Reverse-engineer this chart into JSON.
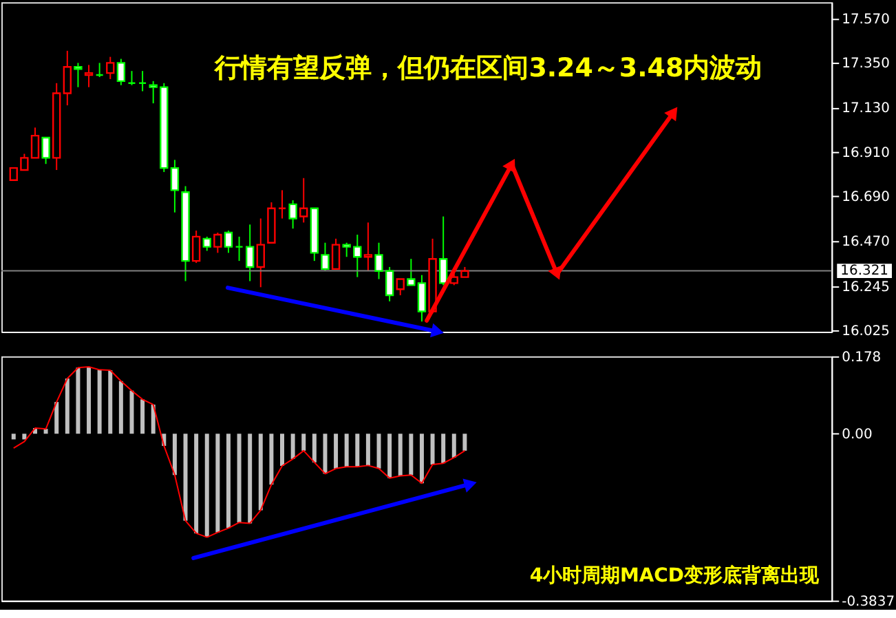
{
  "chart_data": [
    {
      "type": "candlestick",
      "categories": [
        null,
        null,
        null,
        null,
        null,
        null,
        null,
        null,
        null,
        null,
        null,
        null,
        null,
        null,
        null,
        null,
        null,
        null,
        null,
        null,
        null,
        null,
        null,
        null,
        null,
        null,
        null,
        null,
        null,
        null,
        null,
        null,
        null,
        null,
        null,
        null,
        null,
        null,
        null,
        null,
        null,
        null,
        null,
        null,
        null,
        null,
        null,
        null,
        null,
        null,
        null,
        null,
        null,
        null,
        null,
        null,
        null,
        null,
        null,
        null,
        null,
        null,
        null,
        null,
        null,
        null,
        null,
        null,
        null,
        null,
        null,
        null,
        null,
        null,
        null,
        null
      ],
      "ohlc": [
        [
          16.77,
          16.83,
          16.77,
          16.83
        ],
        [
          16.82,
          16.9,
          16.82,
          16.88
        ],
        [
          16.88,
          17.03,
          16.88,
          16.99
        ],
        [
          16.98,
          16.98,
          16.85,
          16.88
        ],
        [
          16.88,
          17.25,
          16.82,
          17.2
        ],
        [
          17.2,
          17.41,
          17.14,
          17.33
        ],
        [
          17.33,
          17.35,
          17.23,
          17.32
        ],
        [
          17.29,
          17.34,
          17.23,
          17.3
        ],
        [
          17.29,
          17.35,
          17.28,
          17.29
        ],
        [
          17.3,
          17.38,
          17.27,
          17.35
        ],
        [
          17.35,
          17.37,
          17.24,
          17.26
        ],
        [
          17.25,
          17.31,
          17.24,
          17.25
        ],
        [
          17.25,
          17.31,
          17.21,
          17.25
        ],
        [
          17.24,
          17.26,
          17.15,
          17.23
        ],
        [
          17.23,
          17.25,
          16.81,
          16.83
        ],
        [
          16.83,
          16.87,
          16.61,
          16.72
        ],
        [
          16.71,
          16.74,
          16.27,
          16.37
        ],
        [
          16.37,
          16.52,
          16.36,
          16.49
        ],
        [
          16.48,
          16.49,
          16.42,
          16.44
        ],
        [
          16.44,
          16.51,
          16.41,
          16.5
        ],
        [
          16.51,
          16.52,
          16.41,
          16.44
        ],
        [
          16.44,
          16.49,
          16.37,
          16.44
        ],
        [
          16.44,
          16.55,
          16.27,
          16.34
        ],
        [
          16.34,
          16.58,
          16.24,
          16.45
        ],
        [
          16.46,
          16.66,
          16.46,
          16.63
        ],
        [
          16.63,
          16.72,
          16.58,
          16.63
        ],
        [
          16.65,
          16.67,
          16.53,
          16.58
        ],
        [
          16.59,
          16.78,
          16.56,
          16.63
        ],
        [
          16.63,
          16.63,
          16.37,
          16.41
        ],
        [
          16.4,
          16.46,
          16.32,
          16.33
        ],
        [
          16.33,
          16.48,
          16.33,
          16.45
        ],
        [
          16.45,
          16.46,
          16.39,
          16.44
        ],
        [
          16.44,
          16.5,
          16.29,
          16.39
        ],
        [
          16.39,
          16.56,
          16.32,
          16.4
        ],
        [
          16.4,
          16.46,
          16.28,
          16.32
        ],
        [
          16.32,
          16.34,
          16.17,
          16.2
        ],
        [
          16.23,
          16.28,
          16.2,
          16.28
        ],
        [
          16.28,
          16.38,
          16.25,
          16.25
        ],
        [
          16.26,
          16.3,
          16.07,
          16.12
        ],
        [
          16.12,
          16.48,
          16.11,
          16.38
        ],
        [
          16.38,
          16.59,
          16.25,
          16.26
        ],
        [
          16.26,
          16.32,
          16.25,
          16.29
        ],
        [
          16.29,
          16.34,
          16.29,
          16.32
        ],
        null,
        null,
        null,
        null,
        null,
        null,
        null,
        null,
        null,
        null,
        null,
        null,
        null,
        null,
        null,
        null,
        null,
        null,
        null,
        null,
        null,
        null,
        null,
        null,
        null,
        null,
        null,
        null,
        null,
        null,
        null,
        null,
        null
      ],
      "colors": [
        "#ff0000",
        "#ff0000",
        "#ff0000",
        "#00ff00",
        "#ff0000",
        "#ff0000",
        "#00ff00",
        "#ff0000",
        "#00ff00",
        "#ff0000",
        "#00ff00",
        "#00ff00",
        "#00ff00",
        "#00ff00",
        "#00ff00",
        "#00ff00",
        "#00ff00",
        "#ff0000",
        "#00ff00",
        "#ff0000",
        "#00ff00",
        "#00ff00",
        "#00ff00",
        "#ff0000",
        "#ff0000",
        "#ff0000",
        "#00ff00",
        "#ff0000",
        "#00ff00",
        "#00ff00",
        "#ff0000",
        "#00ff00",
        "#00ff00",
        "#ff0000",
        "#00ff00",
        "#00ff00",
        "#ff0000",
        "#00ff00",
        "#00ff00",
        "#ff0000",
        "#00ff00",
        "#ff0000",
        "#ff0000",
        null,
        null,
        null,
        null,
        null,
        null,
        null,
        null,
        null,
        null,
        null,
        null,
        null,
        null,
        null,
        null,
        null,
        null,
        null,
        null,
        null,
        null,
        null,
        null,
        null,
        null,
        null,
        null,
        null,
        null,
        null,
        null,
        null
      ],
      "ylim": [
        16.02,
        17.65
      ],
      "yticks": [
        {
          "value": 17.57,
          "label": "17.570"
        },
        {
          "value": 17.35,
          "label": "17.350"
        },
        {
          "value": 17.13,
          "label": "17.130"
        },
        {
          "value": 16.91,
          "label": "16.910"
        },
        {
          "value": 16.69,
          "label": "16.690"
        },
        {
          "value": 16.47,
          "label": "16.470"
        },
        {
          "value": 16.245,
          "label": "16.245"
        },
        {
          "value": 16.025,
          "label": "16.025"
        }
      ],
      "tick_labels": "y",
      "ref_lines": [
        {
          "axis": "y",
          "value": 16.321,
          "label": "16.321",
          "color": "#808080"
        }
      ],
      "annotations": [
        "行情有望反弹，但仍在区间3.24～3.48内波动"
      ]
    },
    {
      "type": "bar",
      "categories": [
        null,
        null,
        null,
        null,
        null,
        null,
        null,
        null,
        null,
        null,
        null,
        null,
        null,
        null,
        null,
        null,
        null,
        null,
        null,
        null,
        null,
        null,
        null,
        null,
        null,
        null,
        null,
        null,
        null,
        null,
        null,
        null,
        null,
        null,
        null,
        null,
        null,
        null,
        null,
        null,
        null,
        null,
        null,
        null,
        null,
        null,
        null,
        null,
        null,
        null,
        null,
        null,
        null,
        null,
        null,
        null,
        null,
        null,
        null,
        null,
        null,
        null,
        null,
        null,
        null,
        null,
        null,
        null,
        null,
        null,
        null,
        null,
        null,
        null,
        null,
        null
      ],
      "series": [
        {
          "type": "bar",
          "color": "#c0c0c0",
          "values": [
            -0.013,
            -0.013,
            0.013,
            0.011,
            0.073,
            0.127,
            0.152,
            0.154,
            0.147,
            0.146,
            0.121,
            0.099,
            0.079,
            0.067,
            -0.028,
            -0.095,
            -0.2,
            -0.229,
            -0.238,
            -0.227,
            -0.217,
            -0.204,
            -0.206,
            -0.176,
            -0.117,
            -0.074,
            -0.058,
            -0.039,
            -0.066,
            -0.092,
            -0.08,
            -0.076,
            -0.076,
            -0.073,
            -0.08,
            -0.102,
            -0.097,
            -0.095,
            -0.114,
            -0.071,
            -0.068,
            -0.055,
            -0.039,
            null,
            null,
            null,
            null,
            null,
            null,
            null,
            null,
            null,
            null,
            null,
            null,
            null,
            null,
            null,
            null,
            null,
            null,
            null,
            null,
            null,
            null,
            null,
            null,
            null,
            null,
            null,
            null,
            null,
            null,
            null,
            null,
            null
          ]
        },
        {
          "type": "line",
          "color": "#ff0000",
          "values": [
            -0.033,
            -0.018,
            0.013,
            0.011,
            0.073,
            0.127,
            0.152,
            0.154,
            0.147,
            0.146,
            0.121,
            0.099,
            0.079,
            0.067,
            -0.028,
            -0.095,
            -0.2,
            -0.229,
            -0.238,
            -0.227,
            -0.217,
            -0.204,
            -0.206,
            -0.176,
            -0.117,
            -0.074,
            -0.058,
            -0.039,
            -0.066,
            -0.092,
            -0.08,
            -0.076,
            -0.076,
            -0.073,
            -0.08,
            -0.102,
            -0.097,
            -0.095,
            -0.114,
            -0.071,
            -0.068,
            -0.055,
            -0.039,
            null,
            null,
            null,
            null,
            null,
            null,
            null,
            null,
            null,
            null,
            null,
            null,
            null,
            null,
            null,
            null,
            null,
            null,
            null,
            null,
            null,
            null,
            null,
            null,
            null,
            null,
            null,
            null,
            null,
            null,
            null,
            null,
            null
          ]
        }
      ],
      "ylim": [
        -0.3837,
        0.178
      ],
      "yticks": [
        0.178,
        {
          "value": 0,
          "label": "0.00"
        },
        -0.3837
      ],
      "tick_labels": "y",
      "annotations": [
        "4小时周期MACD变形底背离出现"
      ]
    }
  ]
}
